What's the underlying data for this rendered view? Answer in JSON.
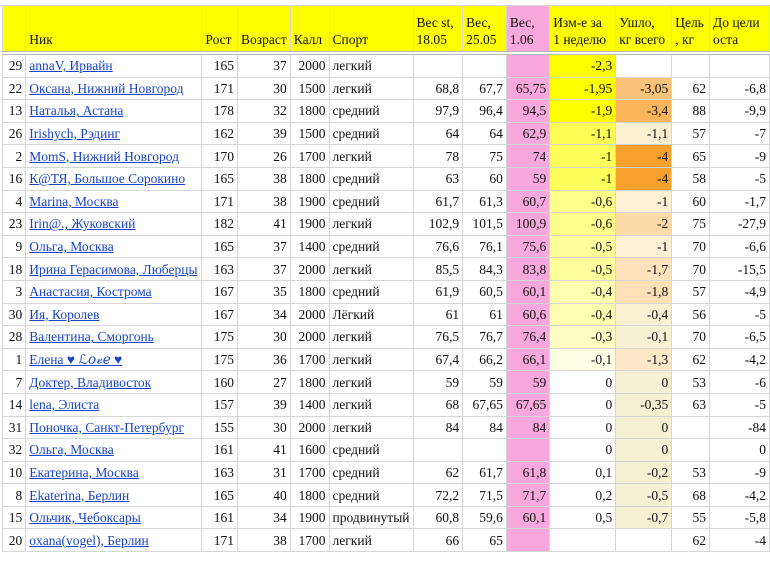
{
  "header": {
    "idx": "",
    "name": "Ник",
    "height": "Рост",
    "age": "Возраст",
    "kcal": "Калл",
    "sport": "Спорт",
    "w1": [
      "Вес st,",
      "18.05"
    ],
    "w2": [
      "Вес,",
      "25.05"
    ],
    "w3": [
      "Вес,",
      "1.06"
    ],
    "change": [
      "Изм-е за",
      "1 неделю"
    ],
    "lost": [
      "Ушло,",
      "кг всего"
    ],
    "goal": [
      "Цель",
      ", кг"
    ],
    "left": [
      "До цели",
      "оста"
    ]
  },
  "colors": {
    "header_bg": "#ffff00",
    "current_weight_bg": "#f9a8dd",
    "link": "#1a44c8"
  },
  "rows": [
    {
      "idx": "29",
      "name": "annaV, Ирвайн",
      "height": "165",
      "age": "37",
      "kcal": "2000",
      "sport": "легкий",
      "w1": "",
      "w2": "",
      "w3": "",
      "change": "-2,3",
      "lost": "",
      "goal": "",
      "left": "",
      "change_bg": "#ffff00",
      "lost_bg": "#ffffff"
    },
    {
      "idx": "22",
      "name": "Оксана, Нижний Новгород",
      "height": "171",
      "age": "30",
      "kcal": "1500",
      "sport": "легкий",
      "w1": "68,8",
      "w2": "67,7",
      "w3": "65,75",
      "change": "-1,95",
      "lost": "-3,05",
      "goal": "62",
      "left": "-6,8",
      "change_bg": "#ffff00",
      "lost_bg": "#fbc27a"
    },
    {
      "idx": "13",
      "name": "Наталья, Астана",
      "height": "178",
      "age": "32",
      "kcal": "1800",
      "sport": "средний",
      "w1": "97,9",
      "w2": "96,4",
      "w3": "94,5",
      "change": "-1,9",
      "lost": "-3,4",
      "goal": "88",
      "left": "-9,9",
      "change_bg": "#ffff00",
      "lost_bg": "#fab45a"
    },
    {
      "idx": "26",
      "name": "Irishych, Рэдинг",
      "height": "162",
      "age": "39",
      "kcal": "1500",
      "sport": "средний",
      "w1": "64",
      "w2": "64",
      "w3": "62,9",
      "change": "-1,1",
      "lost": "-1,1",
      "goal": "57",
      "left": "-7",
      "change_bg": "#ffff55",
      "lost_bg": "#fdefd2"
    },
    {
      "idx": "2",
      "name": "MomS, Нижний Новгород",
      "height": "170",
      "age": "26",
      "kcal": "1700",
      "sport": "легкий",
      "w1": "78",
      "w2": "75",
      "w3": "74",
      "change": "-1",
      "lost": "-4",
      "goal": "65",
      "left": "-9",
      "change_bg": "#ffff5c",
      "lost_bg": "#f8a12e"
    },
    {
      "idx": "16",
      "name": "К@ТЯ, Большое Сорокино",
      "height": "165",
      "age": "38",
      "kcal": "1800",
      "sport": "средний",
      "w1": "63",
      "w2": "60",
      "w3": "59",
      "change": "-1",
      "lost": "-4",
      "goal": "58",
      "left": "-5",
      "change_bg": "#ffff5c",
      "lost_bg": "#f8a12e"
    },
    {
      "idx": "4",
      "name": "Marina, Москва",
      "height": "171",
      "age": "38",
      "kcal": "1900",
      "sport": "средний",
      "w1": "61,7",
      "w2": "61,3",
      "w3": "60,7",
      "change": "-0,6",
      "lost": "-1",
      "goal": "60",
      "left": "-1,7",
      "change_bg": "#ffff8c",
      "lost_bg": "#fdf0d4"
    },
    {
      "idx": "23",
      "name": "Irin@., Жуковский",
      "height": "182",
      "age": "41",
      "kcal": "1900",
      "sport": "легкий",
      "w1": "102,9",
      "w2": "101,5",
      "w3": "100,9",
      "change": "-0,6",
      "lost": "-2",
      "goal": "75",
      "left": "-27,9",
      "change_bg": "#ffff8c",
      "lost_bg": "#fcdaa8"
    },
    {
      "idx": "9",
      "name": "Ольга, Москва",
      "height": "165",
      "age": "37",
      "kcal": "1400",
      "sport": "средний",
      "w1": "76,6",
      "w2": "76,1",
      "w3": "75,6",
      "change": "-0,5",
      "lost": "-1",
      "goal": "70",
      "left": "-6,6",
      "change_bg": "#ffff9c",
      "lost_bg": "#fdf0d4"
    },
    {
      "idx": "18",
      "name": "Ирина Герасимова, Люберцы",
      "height": "163",
      "age": "37",
      "kcal": "2000",
      "sport": "легкий",
      "w1": "85,5",
      "w2": "84,3",
      "w3": "83,8",
      "change": "-0,5",
      "lost": "-1,7",
      "goal": "70",
      "left": "-15,5",
      "change_bg": "#ffff9c",
      "lost_bg": "#fde2bc"
    },
    {
      "idx": "3",
      "name": "Анастасия, Кострома",
      "height": "167",
      "age": "35",
      "kcal": "1800",
      "sport": "средний",
      "w1": "61,9",
      "w2": "60,5",
      "w3": "60,1",
      "change": "-0,4",
      "lost": "-1,8",
      "goal": "57",
      "left": "-4,9",
      "change_bg": "#ffffb0",
      "lost_bg": "#fde0b6"
    },
    {
      "idx": "30",
      "name": "Ия, Королев",
      "height": "167",
      "age": "34",
      "kcal": "2000",
      "sport": "Лёгкий",
      "w1": "61",
      "w2": "61",
      "w3": "60,6",
      "change": "-0,4",
      "lost": "-0,4",
      "goal": "56",
      "left": "-5",
      "change_bg": "#ffffb0",
      "lost_bg": "#faf0d2"
    },
    {
      "idx": "28",
      "name": "Валентина, Сморгонь",
      "height": "175",
      "age": "30",
      "kcal": "2000",
      "sport": "легкий",
      "w1": "76,5",
      "w2": "76,7",
      "w3": "76,4",
      "change": "-0,3",
      "lost": "-0,1",
      "goal": "70",
      "left": "-6,5",
      "change_bg": "#ffffc4",
      "lost_bg": "#f8f0d2"
    },
    {
      "idx": "1",
      "name": "Елена ♥ ℒ𝑜𝓋𝑒 ♥",
      "height": "175",
      "age": "36",
      "kcal": "1700",
      "sport": "легкий",
      "w1": "67,4",
      "w2": "66,2",
      "w3": "66,1",
      "change": "-0,1",
      "lost": "-1,3",
      "goal": "62",
      "left": "-4,2",
      "change_bg": "#ffffe6",
      "lost_bg": "#fde9c8"
    },
    {
      "idx": "7",
      "name": "Доктер, Владивосток",
      "height": "160",
      "age": "27",
      "kcal": "1800",
      "sport": "легкий",
      "w1": "59",
      "w2": "59",
      "w3": "59",
      "change": "0",
      "lost": "0",
      "goal": "53",
      "left": "-6",
      "change_bg": "#ffffff",
      "lost_bg": "#f8f0d2"
    },
    {
      "idx": "14",
      "name": "lena, Элиста",
      "height": "157",
      "age": "39",
      "kcal": "1400",
      "sport": "легкий",
      "w1": "68",
      "w2": "67,65",
      "w3": "67,65",
      "change": "0",
      "lost": "-0,35",
      "goal": "63",
      "left": "-5",
      "change_bg": "#ffffff",
      "lost_bg": "#f8f0d2"
    },
    {
      "idx": "31",
      "name": "Поночка, Санкт-Петербург",
      "height": "155",
      "age": "30",
      "kcal": "2000",
      "sport": "легкий",
      "w1": "84",
      "w2": "84",
      "w3": "84",
      "change": "0",
      "lost": "0",
      "goal": "",
      "left": "-84",
      "change_bg": "#ffffff",
      "lost_bg": "#f8f0d2"
    },
    {
      "idx": "32",
      "name": "Ольга, Москва",
      "height": "161",
      "age": "41",
      "kcal": "1600",
      "sport": "средний",
      "w1": "",
      "w2": "",
      "w3": "",
      "change": "0",
      "lost": "0",
      "goal": "",
      "left": "0",
      "change_bg": "#ffffff",
      "lost_bg": "#f8f0d2"
    },
    {
      "idx": "10",
      "name": "Екатерина, Москва",
      "height": "163",
      "age": "31",
      "kcal": "1700",
      "sport": "средний",
      "w1": "62",
      "w2": "61,7",
      "w3": "61,8",
      "change": "0,1",
      "lost": "-0,2",
      "goal": "53",
      "left": "-9",
      "change_bg": "#ffffff",
      "lost_bg": "#f8f0d2"
    },
    {
      "idx": "8",
      "name": "Ekaterina, Берлин",
      "height": "165",
      "age": "40",
      "kcal": "1800",
      "sport": "средний",
      "w1": "72,2",
      "w2": "71,5",
      "w3": "71,7",
      "change": "0,2",
      "lost": "-0,5",
      "goal": "68",
      "left": "-4,2",
      "change_bg": "#ffffff",
      "lost_bg": "#f8f0d2"
    },
    {
      "idx": "15",
      "name": "Ольчик, Чебоксары",
      "height": "161",
      "age": "34",
      "kcal": "1900",
      "sport": "продвинутый",
      "w1": "60,8",
      "w2": "59,6",
      "w3": "60,1",
      "change": "0,5",
      "lost": "-0,7",
      "goal": "55",
      "left": "-5,8",
      "change_bg": "#ffffff",
      "lost_bg": "#f8f0d2"
    },
    {
      "idx": "20",
      "name": "oxana(vogel), Берлин",
      "height": "171",
      "age": "38",
      "kcal": "1700",
      "sport": "легкий",
      "w1": "66",
      "w2": "65",
      "w3": "",
      "change": "",
      "lost": "",
      "goal": "62",
      "left": "-4",
      "change_bg": "#ffffff",
      "lost_bg": "#ffffff"
    }
  ]
}
